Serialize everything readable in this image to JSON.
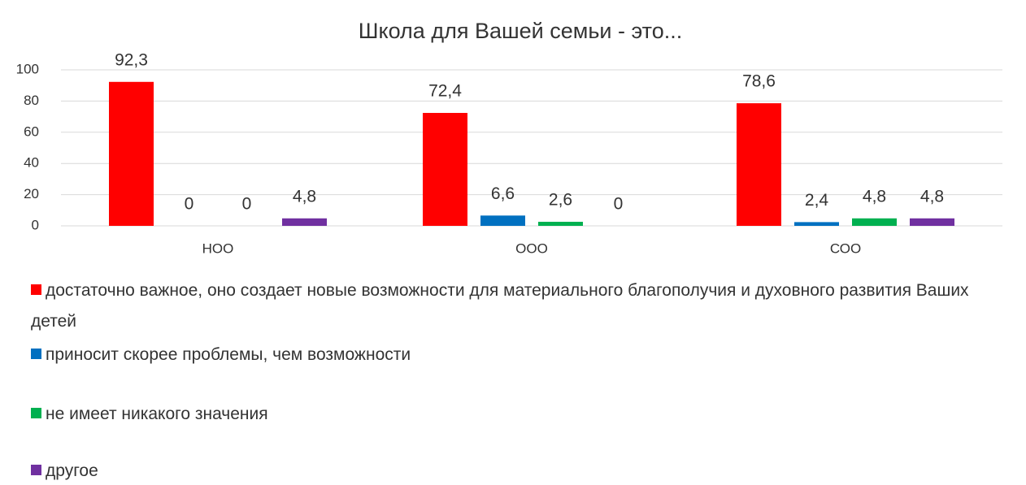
{
  "chart_data": {
    "type": "bar",
    "title": "Школа для Вашей семьи - это...",
    "categories": [
      "НОО",
      "ООО",
      "СОО"
    ],
    "series": [
      {
        "name": "достаточно важное, оно создает новые возможности для материального благополучия и духовного развития Ваших детей",
        "color": "#ff0000",
        "values": [
          92.3,
          72.4,
          78.6
        ],
        "value_labels": [
          "92,3",
          "72,4",
          "78,6"
        ]
      },
      {
        "name": "приносит скорее проблемы, чем возможности",
        "color": "#0070c0",
        "values": [
          0,
          6.6,
          2.4
        ],
        "value_labels": [
          "0",
          "6,6",
          "2,4"
        ]
      },
      {
        "name": "не имеет никакого значения",
        "color": "#00b050",
        "values": [
          0,
          2.6,
          4.8
        ],
        "value_labels": [
          "0",
          "2,6",
          "4,8"
        ]
      },
      {
        "name": "другое",
        "color": "#7030a0",
        "values": [
          4.8,
          0,
          4.8
        ],
        "value_labels": [
          "4,8",
          "0",
          "4,8"
        ]
      }
    ],
    "ylim": [
      0,
      100
    ],
    "yticks": [
      0,
      20,
      40,
      60,
      80,
      100
    ],
    "grid": true,
    "legend": "bottom"
  }
}
